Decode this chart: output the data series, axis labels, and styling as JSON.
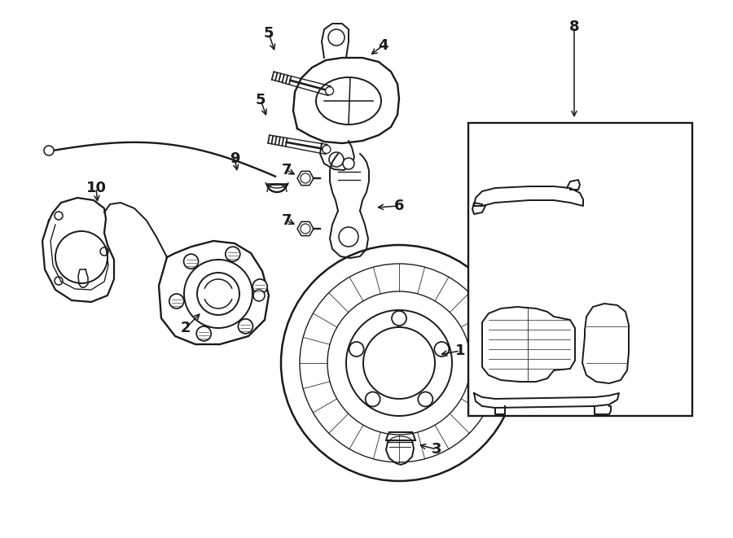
{
  "bg_color": "#ffffff",
  "line_color": "#1a1a1a",
  "lw": 1.4,
  "fig_width": 9.0,
  "fig_height": 6.61,
  "dpi": 100,
  "font_size": 13
}
